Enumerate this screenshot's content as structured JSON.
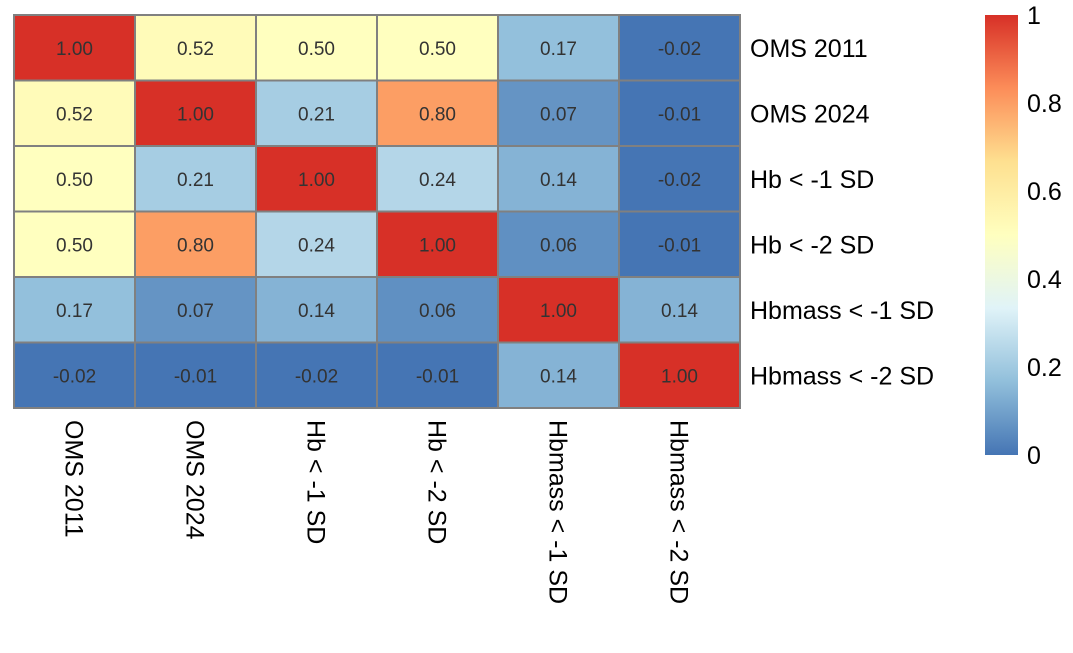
{
  "chart_data": {
    "type": "heatmap",
    "title": "",
    "row_labels": [
      "OMS 2011",
      "OMS 2024",
      "Hb < -1 SD",
      "Hb < -2 SD",
      "Hbmass < -1 SD",
      "Hbmass < -2 SD"
    ],
    "col_labels": [
      "OMS 2011",
      "OMS 2024",
      "Hb < -1 SD",
      "Hb < -2 SD",
      "Hbmass < -1 SD",
      "Hbmass < -2 SD"
    ],
    "values": [
      [
        1.0,
        0.52,
        0.5,
        0.5,
        0.17,
        -0.02
      ],
      [
        0.52,
        1.0,
        0.21,
        0.8,
        0.07,
        -0.01
      ],
      [
        0.5,
        0.21,
        1.0,
        0.24,
        0.14,
        -0.02
      ],
      [
        0.5,
        0.8,
        0.24,
        1.0,
        0.06,
        -0.01
      ],
      [
        0.17,
        0.07,
        0.14,
        0.06,
        1.0,
        0.14
      ],
      [
        -0.02,
        -0.01,
        -0.02,
        -0.01,
        0.14,
        1.0
      ]
    ],
    "cell_labels": [
      [
        "1.00",
        "0.52",
        "0.50",
        "0.50",
        "0.17",
        "-0.02"
      ],
      [
        "0.52",
        "1.00",
        "0.21",
        "0.80",
        "0.07",
        "-0.01"
      ],
      [
        "0.50",
        "0.21",
        "1.00",
        "0.24",
        "0.14",
        "-0.02"
      ],
      [
        "0.50",
        "0.80",
        "0.24",
        "1.00",
        "0.06",
        "-0.01"
      ],
      [
        "0.17",
        "0.07",
        "0.14",
        "0.06",
        "1.00",
        "0.14"
      ],
      [
        "-0.02",
        "-0.01",
        "-0.02",
        "-0.01",
        "0.14",
        "1.00"
      ]
    ],
    "color_scale": {
      "range": [
        0,
        1
      ],
      "ticks": [
        0,
        0.2,
        0.4,
        0.6,
        0.8,
        1
      ],
      "tick_labels": [
        "0",
        "0.2",
        "0.4",
        "0.6",
        "0.8",
        "1"
      ],
      "colors": [
        "#4575B4",
        "#91BFDB",
        "#E0F3F8",
        "#FFFFBF",
        "#FEE090",
        "#FC8D59",
        "#D73027"
      ]
    },
    "cell_border_color": "#808080",
    "legend_placement": "right",
    "row_label_placement": "right",
    "col_label_placement": "bottom-rotated"
  }
}
